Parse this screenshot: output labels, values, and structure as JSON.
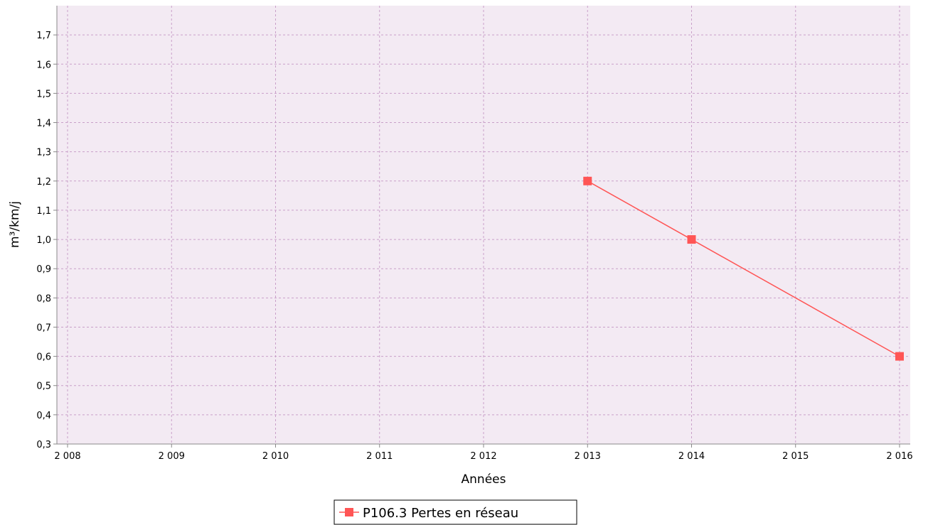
{
  "chart_data": {
    "type": "line",
    "title": "",
    "xlabel": "Années",
    "ylabel": "m³/km/j",
    "xlim": [
      2008,
      2016
    ],
    "ylim": [
      0.3,
      1.8
    ],
    "x_ticks": [
      2008,
      2009,
      2010,
      2011,
      2012,
      2013,
      2014,
      2015,
      2016
    ],
    "x_tick_labels": [
      "2 008",
      "2 009",
      "2 010",
      "2 011",
      "2 012",
      "2 013",
      "2 014",
      "2 015",
      "2 016"
    ],
    "y_ticks": [
      0.3,
      0.4,
      0.5,
      0.6,
      0.7,
      0.8,
      0.9,
      1.0,
      1.1,
      1.2,
      1.3,
      1.4,
      1.5,
      1.6,
      1.7
    ],
    "y_tick_labels": [
      "0,3",
      "0,4",
      "0,5",
      "0,6",
      "0,7",
      "0,8",
      "0,9",
      "1,0",
      "1,1",
      "1,2",
      "1,3",
      "1,4",
      "1,5",
      "1,6",
      "1,7"
    ],
    "grid": true,
    "legend_position": "bottom-center",
    "colors": {
      "plot_background": "#f3eaf3",
      "grid": "#c9a0c9",
      "series": "#ff5555"
    },
    "series": [
      {
        "name": "P106.3 Pertes en réseau",
        "x": [
          2013,
          2014,
          2016
        ],
        "y": [
          1.2,
          1.0,
          0.6
        ]
      }
    ]
  }
}
